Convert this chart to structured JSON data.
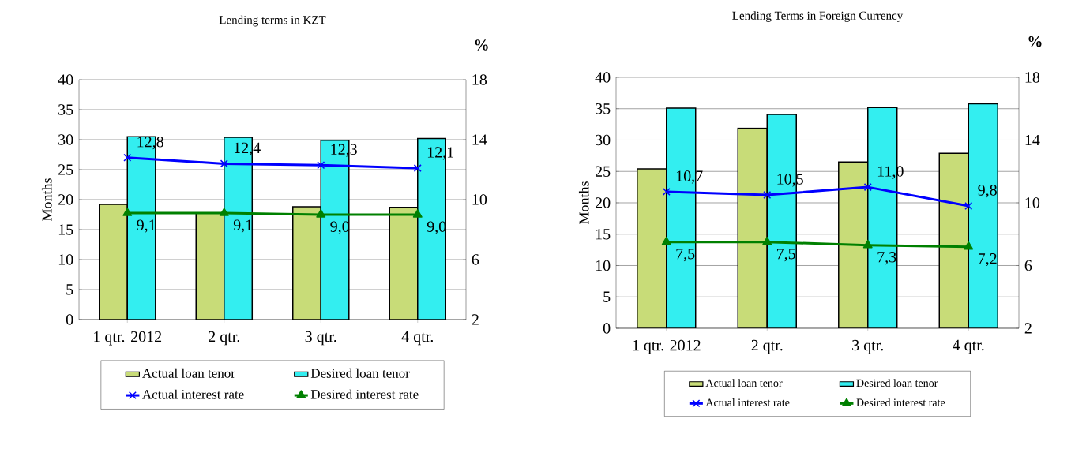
{
  "chart_data": [
    {
      "type": "bar",
      "title": "Lending terms in KZT",
      "ylabel": "Months",
      "y2label": "%",
      "categories": [
        "1 qtr. 2012",
        "2 qtr.",
        "3 qtr.",
        "4 qtr."
      ],
      "series": [
        {
          "name": "Actual loan tenor",
          "color": "#c8dc78",
          "values": [
            19.2,
            17.8,
            18.8,
            18.7
          ]
        },
        {
          "name": "Desired loan tenor",
          "color": "#33eef0",
          "values": [
            30.5,
            30.4,
            29.9,
            30.2
          ]
        },
        {
          "name": "Actual interest rate",
          "type": "line",
          "axis": "y2",
          "color": "#0000ff",
          "marker": "cross",
          "values": [
            12.8,
            12.4,
            12.3,
            12.1
          ],
          "value_labels": [
            "12,8",
            "12,4",
            "12,3",
            "12,1"
          ]
        },
        {
          "name": "Desired interest rate",
          "type": "line",
          "axis": "y2",
          "color": "#008000",
          "marker": "triangle",
          "values": [
            9.1,
            9.1,
            9.0,
            9.0
          ],
          "value_labels": [
            "9,1",
            "9,1",
            "9,0",
            "9,0"
          ]
        }
      ],
      "ylim": [
        0,
        40
      ],
      "yticks": [
        0,
        5,
        10,
        15,
        20,
        25,
        30,
        35,
        40
      ],
      "y2lim": [
        2,
        18
      ],
      "y2ticks": [
        2,
        6,
        10,
        14,
        18
      ],
      "grid": "y",
      "legend": "bottom"
    },
    {
      "type": "bar",
      "title": "Lending Terms in Foreign Currency",
      "ylabel": "Months",
      "y2label": "%",
      "categories": [
        "1 qtr. 2012",
        "2 qtr.",
        "3 qtr.",
        "4 qtr."
      ],
      "series": [
        {
          "name": "Actual loan tenor",
          "color": "#c8dc78",
          "values": [
            25.4,
            31.9,
            26.5,
            27.9
          ]
        },
        {
          "name": "Desired loan tenor",
          "color": "#33eef0",
          "values": [
            35.1,
            34.1,
            35.2,
            35.8
          ]
        },
        {
          "name": "Actual interest rate",
          "type": "line",
          "axis": "y2",
          "color": "#0000ff",
          "marker": "cross",
          "values": [
            10.7,
            10.5,
            11.0,
            9.8
          ],
          "value_labels": [
            "10,7",
            "10,5",
            "11,0",
            "9,8"
          ]
        },
        {
          "name": "Desired interest rate",
          "type": "line",
          "axis": "y2",
          "color": "#008000",
          "marker": "triangle",
          "values": [
            7.5,
            7.5,
            7.3,
            7.2
          ],
          "value_labels": [
            "7,5",
            "7,5",
            "7,3",
            "7,2"
          ]
        }
      ],
      "ylim": [
        0,
        40
      ],
      "yticks": [
        0,
        5,
        10,
        15,
        20,
        25,
        30,
        35,
        40
      ],
      "y2lim": [
        2,
        18
      ],
      "y2ticks": [
        2,
        6,
        10,
        14,
        18
      ],
      "grid": "y",
      "legend": "bottom"
    }
  ]
}
